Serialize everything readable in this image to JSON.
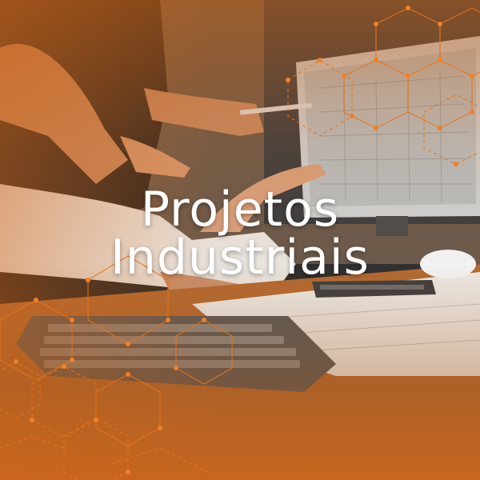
{
  "title": {
    "line1": "Projetos",
    "line2": "Industriais"
  },
  "colors": {
    "accent": "#e8741c",
    "text": "#ffffff"
  }
}
